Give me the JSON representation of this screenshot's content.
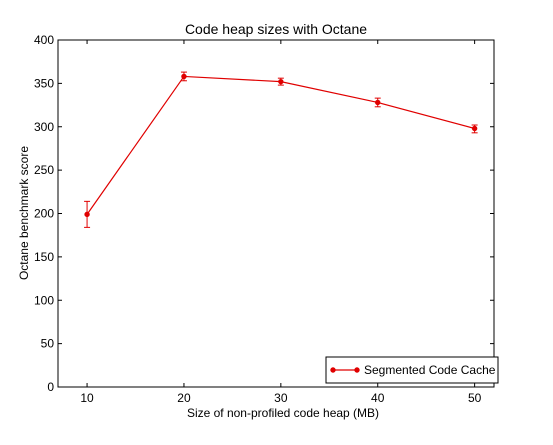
{
  "chart_data": {
    "type": "line",
    "title": "Code heap sizes with Octane",
    "xlabel": "Size of non-profiled code heap (MB)",
    "ylabel": "Octane benchmark score",
    "xlim": [
      7,
      52
    ],
    "ylim": [
      0,
      400
    ],
    "xticks": [
      10,
      20,
      30,
      40,
      50
    ],
    "yticks": [
      0,
      50,
      100,
      150,
      200,
      250,
      300,
      350,
      400
    ],
    "grid": false,
    "legend_position": "bottom-right",
    "series": [
      {
        "name": "Segmented Code Cache",
        "color": "#e00000",
        "marker": "circle",
        "x": [
          10,
          20,
          30,
          40,
          50
        ],
        "y": [
          199,
          358,
          352,
          328,
          298
        ],
        "error_low": [
          184,
          353,
          348,
          323,
          293
        ],
        "error_high": [
          214,
          363,
          356,
          333,
          302
        ]
      }
    ]
  }
}
